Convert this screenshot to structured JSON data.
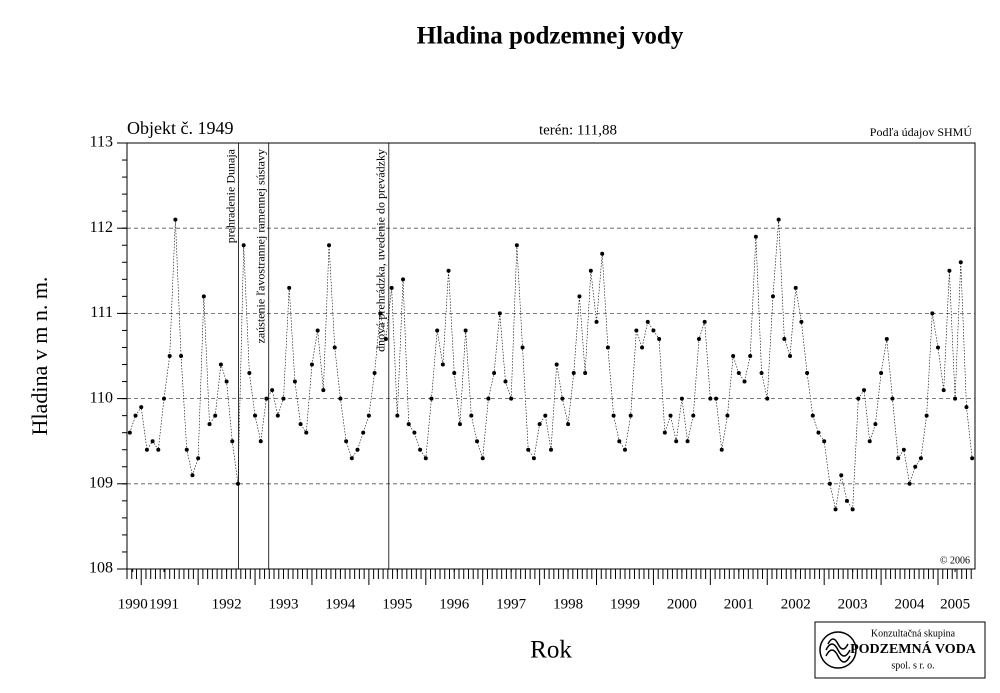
{
  "chart_data": {
    "type": "scatter",
    "title": "Hladina podzemnej vody",
    "subtitle_left": "Objekt č. 1949",
    "subtitle_center": "terén: 111,88",
    "subtitle_right": "Podľa údajov SHMÚ",
    "copyright": "© 2006",
    "xlabel": "Rok",
    "ylabel": "Hladina v m n. m.",
    "logo": {
      "line1": "Konzultačná skupina",
      "line2": "PODZEMNÁ VODA",
      "line3": "spol. s r. o."
    },
    "annotations": [
      {
        "x": 1992.71,
        "text": "prehradenie Dunaja"
      },
      {
        "x": 1993.24,
        "text": "zaústenie ľavostrannej ramennej sústavy"
      },
      {
        "x": 1995.35,
        "text": "dnová prehrádzka, uvedenie do prevádzky"
      }
    ],
    "xlim": [
      1990.75,
      2005.65
    ],
    "ylim": [
      108,
      113
    ],
    "yticks": [
      108,
      109,
      110,
      111,
      112,
      113
    ],
    "grid_y": [
      109,
      110,
      111,
      112
    ],
    "xticks": [
      {
        "value": 1990.85,
        "label": "1990"
      },
      {
        "value": 1991.4,
        "label": "1991"
      },
      {
        "value": 1992.5,
        "label": "1992"
      },
      {
        "value": 1993.5,
        "label": "1993"
      },
      {
        "value": 1994.5,
        "label": "1994"
      },
      {
        "value": 1995.5,
        "label": "1995"
      },
      {
        "value": 1996.5,
        "label": "1996"
      },
      {
        "value": 1997.5,
        "label": "1997"
      },
      {
        "value": 1998.5,
        "label": "1998"
      },
      {
        "value": 1999.5,
        "label": "1999"
      },
      {
        "value": 2000.5,
        "label": "2000"
      },
      {
        "value": 2001.5,
        "label": "2001"
      },
      {
        "value": 2002.5,
        "label": "2002"
      },
      {
        "value": 2003.5,
        "label": "2003"
      },
      {
        "value": 2004.5,
        "label": "2004"
      },
      {
        "value": 2005.3,
        "label": "2005"
      }
    ],
    "color": "#000000",
    "x": [
      1990.8,
      1990.9,
      1991.0,
      1991.1,
      1991.2,
      1991.3,
      1991.4,
      1991.5,
      1991.6,
      1991.7,
      1991.8,
      1991.9,
      1992.0,
      1992.1,
      1992.2,
      1992.3,
      1992.4,
      1992.5,
      1992.6,
      1992.7,
      1992.8,
      1992.9,
      1993.0,
      1993.1,
      1993.2,
      1993.3,
      1993.4,
      1993.5,
      1993.6,
      1993.7,
      1993.8,
      1993.9,
      1994.0,
      1994.1,
      1994.2,
      1994.3,
      1994.4,
      1994.5,
      1994.6,
      1994.7,
      1994.8,
      1994.9,
      1995.0,
      1995.1,
      1995.2,
      1995.3,
      1995.4,
      1995.5,
      1995.6,
      1995.7,
      1995.8,
      1995.9,
      1996.0,
      1996.1,
      1996.2,
      1996.3,
      1996.4,
      1996.5,
      1996.6,
      1996.7,
      1996.8,
      1996.9,
      1997.0,
      1997.1,
      1997.2,
      1997.3,
      1997.4,
      1997.5,
      1997.6,
      1997.7,
      1997.8,
      1997.9,
      1998.0,
      1998.1,
      1998.2,
      1998.3,
      1998.4,
      1998.5,
      1998.6,
      1998.7,
      1998.8,
      1998.9,
      1999.0,
      1999.1,
      1999.2,
      1999.3,
      1999.4,
      1999.5,
      1999.6,
      1999.7,
      1999.8,
      1999.9,
      2000.0,
      2000.1,
      2000.2,
      2000.3,
      2000.4,
      2000.5,
      2000.6,
      2000.7,
      2000.8,
      2000.9,
      2001.0,
      2001.1,
      2001.2,
      2001.3,
      2001.4,
      2001.5,
      2001.6,
      2001.7,
      2001.8,
      2001.9,
      2002.0,
      2002.1,
      2002.2,
      2002.3,
      2002.4,
      2002.5,
      2002.6,
      2002.7,
      2002.8,
      2002.9,
      2003.0,
      2003.1,
      2003.2,
      2003.3,
      2003.4,
      2003.5,
      2003.6,
      2003.7,
      2003.8,
      2003.9,
      2004.0,
      2004.1,
      2004.2,
      2004.3,
      2004.4,
      2004.5,
      2004.6,
      2004.7,
      2004.8,
      2004.9,
      2005.0,
      2005.1,
      2005.2,
      2005.3,
      2005.4,
      2005.5,
      2005.6
    ],
    "values": [
      109.6,
      109.8,
      109.9,
      109.4,
      109.5,
      109.4,
      110.0,
      110.5,
      112.1,
      110.5,
      109.4,
      109.1,
      109.3,
      111.2,
      109.7,
      109.8,
      110.4,
      110.2,
      109.5,
      109.0,
      111.8,
      110.3,
      109.8,
      109.5,
      110.0,
      110.1,
      109.8,
      110.0,
      111.3,
      110.2,
      109.7,
      109.6,
      110.4,
      110.8,
      110.1,
      111.8,
      110.6,
      110.0,
      109.5,
      109.3,
      109.4,
      109.6,
      109.8,
      110.3,
      111.0,
      110.7,
      111.3,
      109.8,
      111.4,
      109.7,
      109.6,
      109.4,
      109.3,
      110.0,
      110.8,
      110.4,
      111.5,
      110.3,
      109.7,
      110.8,
      109.8,
      109.5,
      109.3,
      110.0,
      110.3,
      111.0,
      110.2,
      110.0,
      111.8,
      110.6,
      109.4,
      109.3,
      109.7,
      109.8,
      109.4,
      110.4,
      110.0,
      109.7,
      110.3,
      111.2,
      110.3,
      111.5,
      110.9,
      111.7,
      110.6,
      109.8,
      109.5,
      109.4,
      109.8,
      110.8,
      110.6,
      110.9,
      110.8,
      110.7,
      109.6,
      109.8,
      109.5,
      110.0,
      109.5,
      109.8,
      110.7,
      110.9,
      110.0,
      110.0,
      109.4,
      109.8,
      110.5,
      110.3,
      110.2,
      110.5,
      111.9,
      110.3,
      110.0,
      111.2,
      112.1,
      110.7,
      110.5,
      111.3,
      110.9,
      110.3,
      109.8,
      109.6,
      109.5,
      109.0,
      108.7,
      109.1,
      108.8,
      108.7,
      110.0,
      110.1,
      109.5,
      109.7,
      110.3,
      110.7,
      110.0,
      109.3,
      109.4,
      109.0,
      109.2,
      109.3,
      109.8,
      111.0,
      110.6,
      110.1,
      111.5,
      110.0,
      111.6,
      109.9,
      109.3
    ]
  }
}
